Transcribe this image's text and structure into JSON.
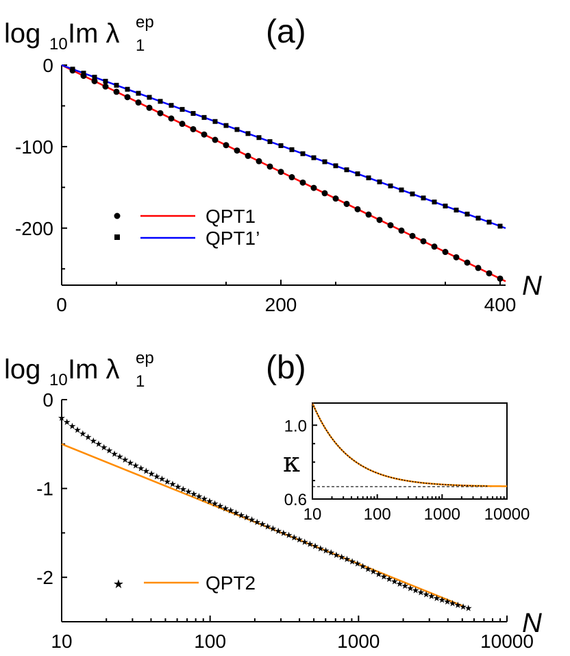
{
  "chart_data": [
    {
      "panel": "(a)",
      "type": "line",
      "ylabel": {
        "prefix": "log",
        "sub": "10",
        "main": "Im λ",
        "sup": "ep",
        "sub2": "1"
      },
      "xlabel": "N",
      "xlim": [
        0,
        405
      ],
      "ylim": [
        -270,
        0
      ],
      "x_ticks": [
        0,
        200,
        400
      ],
      "x_tick_labels": [
        "0",
        "200",
        "400"
      ],
      "y_ticks": [
        0,
        -100,
        -200
      ],
      "y_tick_labels": [
        "0",
        "-100",
        "-200"
      ],
      "series": [
        {
          "name": "QPT1",
          "line_color": "#ff0000",
          "marker": "circle",
          "slope": -0.655,
          "x": [
            0,
            400
          ]
        },
        {
          "name": "QPT1’",
          "line_color": "#0000ff",
          "marker": "square",
          "slope": -0.494,
          "x": [
            0,
            400
          ]
        }
      ],
      "legend": "center-left"
    },
    {
      "panel": "(b)",
      "type": "line",
      "ylabel": {
        "prefix": "log",
        "sub": "10",
        "main": "Im λ",
        "sup": "ep",
        "sub2": "1"
      },
      "xlabel": "N",
      "xscale": "log",
      "xlim": [
        10,
        10000
      ],
      "ylim": [
        -2.5,
        0
      ],
      "x_ticks": [
        10,
        100,
        1000,
        10000
      ],
      "x_tick_labels": [
        "10",
        "100",
        "1000",
        "10000"
      ],
      "y_ticks": [
        0,
        -1,
        -2
      ],
      "y_tick_labels": [
        "0",
        "-1",
        "-2"
      ],
      "series": [
        {
          "name": "QPT2",
          "line_color": "#ff8c00",
          "marker": "star",
          "line": {
            "x": [
              10,
              5000
            ],
            "y": [
              -0.5,
              -2.32
            ]
          },
          "markers": {
            "x": [
              10,
              5500
            ],
            "y_start": -0.2,
            "y_end": -2.33
          }
        }
      ],
      "legend": "bottom-left",
      "inset": {
        "ylabel": "κ",
        "xscale": "log",
        "xlim": [
          10,
          10000
        ],
        "ylim": [
          0.6,
          1.12
        ],
        "x_ticks": [
          10,
          100,
          1000,
          10000
        ],
        "x_tick_labels": [
          "10",
          "100",
          "1000",
          "10000"
        ],
        "y_ticks": [
          0.6,
          1.0
        ],
        "y_tick_labels": [
          "0.6",
          "1.0"
        ],
        "asymptote": 0.667,
        "curve_start": 1.12
      }
    }
  ]
}
